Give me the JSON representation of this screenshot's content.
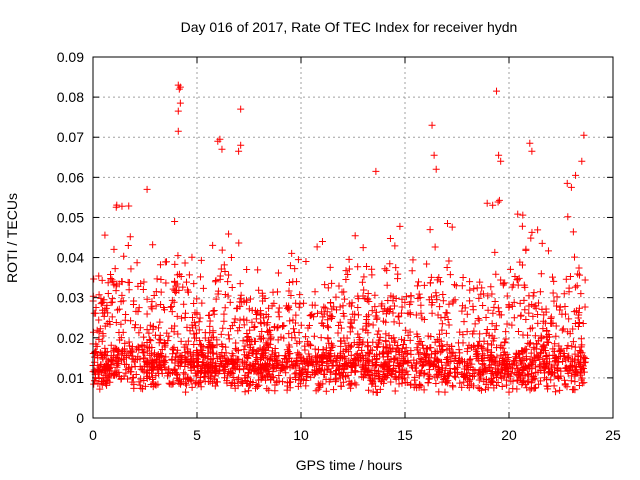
{
  "chart_data": {
    "type": "scatter",
    "title": "Day 016 of 2017, Rate Of TEC Index for receiver hydn",
    "xlabel": "GPS time / hours",
    "ylabel": "ROTI / TECUs",
    "xlim": [
      0,
      25
    ],
    "ylim": [
      0,
      0.09
    ],
    "x_ticks": [
      "0",
      "5",
      "10",
      "15",
      "20",
      "25"
    ],
    "y_ticks": [
      "0",
      "0.01",
      "0.02",
      "0.03",
      "0.04",
      "0.05",
      "0.06",
      "0.07",
      "0.08",
      "0.09"
    ],
    "grid": true,
    "legend": "none",
    "marker": "plus",
    "color": "#ff0000",
    "x_range_of_data": [
      0,
      23.7
    ],
    "series": [
      {
        "x": [
          4.1,
          4.15,
          4.2,
          4.1,
          4.2,
          4.1,
          19.4,
          16.3,
          7.1,
          6.0,
          6.1,
          6.2,
          7.0,
          7.1,
          16.4,
          16.5,
          21.0,
          21.1,
          23.6,
          23.5,
          19.5,
          19.6,
          2.6,
          13.6,
          22.8,
          23.0,
          23.2
        ],
        "values": [
          0.083,
          0.082,
          0.0825,
          0.0765,
          0.0785,
          0.0715,
          0.0815,
          0.073,
          0.077,
          0.069,
          0.0695,
          0.067,
          0.0665,
          0.068,
          0.0655,
          0.062,
          0.0685,
          0.0665,
          0.0705,
          0.064,
          0.0655,
          0.064,
          0.057,
          0.0615,
          0.0585,
          0.0575,
          0.0605
        ]
      }
    ]
  }
}
